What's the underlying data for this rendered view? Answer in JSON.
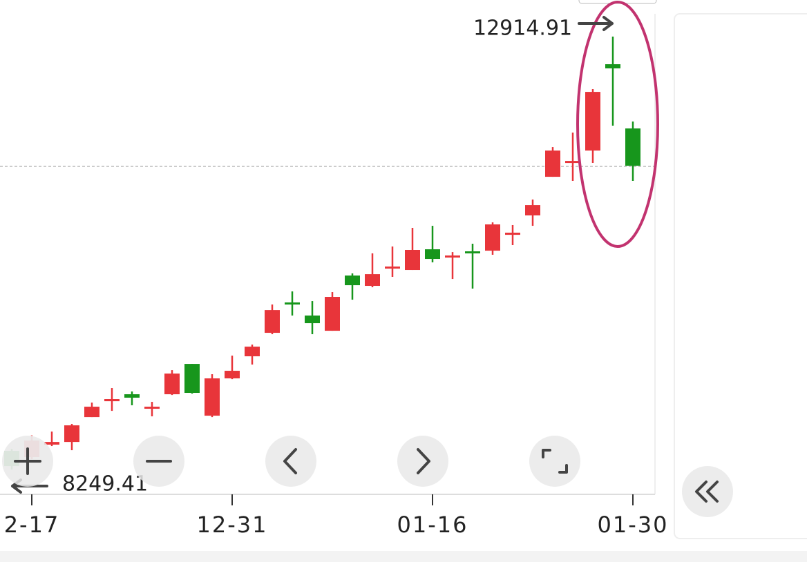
{
  "chart_data": {
    "type": "candlestick",
    "categories": [
      null,
      "2-17",
      null,
      null,
      null,
      null,
      null,
      null,
      null,
      null,
      null,
      "12-31",
      null,
      null,
      null,
      null,
      null,
      null,
      null,
      null,
      null,
      "01-16",
      null,
      null,
      null,
      null,
      null,
      null,
      null,
      null,
      null,
      "01-30"
    ],
    "open": [
      8451,
      8384,
      8518,
      8547,
      8815,
      8986,
      9061,
      8905,
      9061,
      9388,
      8830,
      9232,
      9470,
      9723,
      10050,
      9909,
      9745,
      10340,
      10229,
      10415,
      10400,
      10623,
      10534,
      10601,
      10608,
      10779,
      10988,
      11404,
      11553,
      11687,
      12617,
      11925
    ],
    "high": [
      8473,
      8622,
      8659,
      8741,
      8971,
      9128,
      9091,
      8979,
      9321,
      9388,
      9277,
      9477,
      9596,
      10028,
      10169,
      10065,
      10162,
      10363,
      10579,
      10653,
      10854,
      10876,
      10593,
      10683,
      10913,
      10884,
      11159,
      11724,
      11881,
      12349,
      12914.91,
      12000
    ],
    "low": [
      8249.41,
      8361,
      8503,
      8458,
      8815,
      8882,
      8942,
      8823,
      9053,
      9068,
      8815,
      9224,
      9381,
      9708,
      9909,
      9708,
      9745,
      10080,
      10214,
      10326,
      10400,
      10482,
      10303,
      10199,
      10564,
      10668,
      10876,
      11404,
      11360,
      11553,
      11955,
      11360
    ],
    "close": [
      8287,
      8562,
      8547,
      8726,
      8927,
      9009,
      9024,
      8927,
      9284,
      9076,
      9232,
      9314,
      9574,
      9968,
      10028,
      9827,
      10110,
      10236,
      10355,
      10437,
      10616,
      10519,
      10556,
      10579,
      10891,
      10802,
      11099,
      11687,
      11575,
      12319,
      12572,
      11523
    ],
    "up_color": "#e8353a",
    "down_color": "#17961c",
    "ylim": [
      7990,
      13309
    ],
    "reference_line": 11516,
    "annotations": [
      "12914.91",
      "8249.41"
    ]
  }
}
